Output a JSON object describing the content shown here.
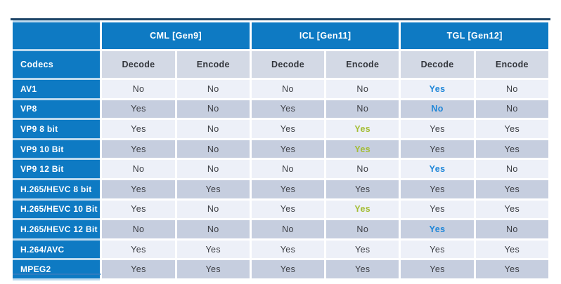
{
  "header": {
    "corner": "",
    "groups": [
      {
        "label": "CML [Gen9]"
      },
      {
        "label": "ICL [Gen11]"
      },
      {
        "label": "TGL [Gen12]"
      }
    ],
    "codec_col": "Codecs",
    "subcols": [
      "Decode",
      "Encode",
      "Decode",
      "Encode",
      "Decode",
      "Encode"
    ]
  },
  "rows": [
    {
      "codec": "AV1",
      "cells": [
        {
          "text": "No",
          "highlight": "none"
        },
        {
          "text": "No",
          "highlight": "none"
        },
        {
          "text": "No",
          "highlight": "none"
        },
        {
          "text": "No",
          "highlight": "none"
        },
        {
          "text": "Yes",
          "highlight": "blue"
        },
        {
          "text": "No",
          "highlight": "none"
        }
      ]
    },
    {
      "codec": "VP8",
      "cells": [
        {
          "text": "Yes",
          "highlight": "none"
        },
        {
          "text": "No",
          "highlight": "none"
        },
        {
          "text": "Yes",
          "highlight": "none"
        },
        {
          "text": "No",
          "highlight": "none"
        },
        {
          "text": "No",
          "highlight": "blue"
        },
        {
          "text": "No",
          "highlight": "none"
        }
      ]
    },
    {
      "codec": "VP9 8 bit",
      "cells": [
        {
          "text": "Yes",
          "highlight": "none"
        },
        {
          "text": "No",
          "highlight": "none"
        },
        {
          "text": "Yes",
          "highlight": "none"
        },
        {
          "text": "Yes",
          "highlight": "green"
        },
        {
          "text": "Yes",
          "highlight": "none"
        },
        {
          "text": "Yes",
          "highlight": "none"
        }
      ]
    },
    {
      "codec": "VP9 10 Bit",
      "cells": [
        {
          "text": "Yes",
          "highlight": "none"
        },
        {
          "text": "No",
          "highlight": "none"
        },
        {
          "text": "Yes",
          "highlight": "none"
        },
        {
          "text": "Yes",
          "highlight": "green"
        },
        {
          "text": "Yes",
          "highlight": "none"
        },
        {
          "text": "Yes",
          "highlight": "none"
        }
      ]
    },
    {
      "codec": "VP9 12 Bit",
      "cells": [
        {
          "text": "No",
          "highlight": "none"
        },
        {
          "text": "No",
          "highlight": "none"
        },
        {
          "text": "No",
          "highlight": "none"
        },
        {
          "text": "No",
          "highlight": "none"
        },
        {
          "text": "Yes",
          "highlight": "blue"
        },
        {
          "text": "No",
          "highlight": "none"
        }
      ]
    },
    {
      "codec": "H.265/HEVC 8 bit",
      "cells": [
        {
          "text": "Yes",
          "highlight": "none"
        },
        {
          "text": "Yes",
          "highlight": "none"
        },
        {
          "text": "Yes",
          "highlight": "none"
        },
        {
          "text": "Yes",
          "highlight": "none"
        },
        {
          "text": "Yes",
          "highlight": "none"
        },
        {
          "text": "Yes",
          "highlight": "none"
        }
      ]
    },
    {
      "codec": "H.265/HEVC 10 Bit",
      "cells": [
        {
          "text": "Yes",
          "highlight": "none"
        },
        {
          "text": "No",
          "highlight": "none"
        },
        {
          "text": "Yes",
          "highlight": "none"
        },
        {
          "text": "Yes",
          "highlight": "green"
        },
        {
          "text": "Yes",
          "highlight": "none"
        },
        {
          "text": "Yes",
          "highlight": "none"
        }
      ]
    },
    {
      "codec": "H.265/HEVC 12 Bit",
      "cells": [
        {
          "text": "No",
          "highlight": "none"
        },
        {
          "text": "No",
          "highlight": "none"
        },
        {
          "text": "No",
          "highlight": "none"
        },
        {
          "text": "No",
          "highlight": "none"
        },
        {
          "text": "Yes",
          "highlight": "blue"
        },
        {
          "text": "No",
          "highlight": "none"
        }
      ]
    },
    {
      "codec": "H.264/AVC",
      "cells": [
        {
          "text": "Yes",
          "highlight": "none"
        },
        {
          "text": "Yes",
          "highlight": "none"
        },
        {
          "text": "Yes",
          "highlight": "none"
        },
        {
          "text": "Yes",
          "highlight": "none"
        },
        {
          "text": "Yes",
          "highlight": "none"
        },
        {
          "text": "Yes",
          "highlight": "none"
        }
      ]
    },
    {
      "codec": "MPEG2",
      "cells": [
        {
          "text": "Yes",
          "highlight": "none"
        },
        {
          "text": "Yes",
          "highlight": "none"
        },
        {
          "text": "Yes",
          "highlight": "none"
        },
        {
          "text": "Yes",
          "highlight": "none"
        },
        {
          "text": "Yes",
          "highlight": "none"
        },
        {
          "text": "Yes",
          "highlight": "none"
        }
      ]
    }
  ],
  "colors": {
    "header_blue": "#0e7ac3",
    "subheader_bg": "#d3d9e5",
    "row_light": "#edf0f8",
    "row_dark": "#c6cedf",
    "text_dark": "#3c3e44",
    "highlight_blue": "#1e86d8",
    "highlight_green": "#a4bd35",
    "seam_light_blue": "#bcd9ee",
    "top_line": "#1e4668",
    "bottom_accent": "#2e7cc0"
  },
  "chart_data": {
    "type": "table",
    "title": "",
    "column_groups": [
      {
        "label": "CML [Gen9]",
        "span": 2
      },
      {
        "label": "ICL [Gen11]",
        "span": 2
      },
      {
        "label": "TGL [Gen12]",
        "span": 2
      }
    ],
    "columns": [
      "Codecs",
      "Decode",
      "Encode",
      "Decode",
      "Encode",
      "Decode",
      "Encode"
    ],
    "rows": [
      [
        "AV1",
        "No",
        "No",
        "No",
        "No",
        "Yes",
        "No"
      ],
      [
        "VP8",
        "Yes",
        "No",
        "Yes",
        "No",
        "No",
        "No"
      ],
      [
        "VP9 8 bit",
        "Yes",
        "No",
        "Yes",
        "Yes",
        "Yes",
        "Yes"
      ],
      [
        "VP9 10 Bit",
        "Yes",
        "No",
        "Yes",
        "Yes",
        "Yes",
        "Yes"
      ],
      [
        "VP9 12 Bit",
        "No",
        "No",
        "No",
        "No",
        "Yes",
        "No"
      ],
      [
        "H.265/HEVC 8 bit",
        "Yes",
        "Yes",
        "Yes",
        "Yes",
        "Yes",
        "Yes"
      ],
      [
        "H.265/HEVC 10 Bit",
        "Yes",
        "No",
        "Yes",
        "Yes",
        "Yes",
        "Yes"
      ],
      [
        "H.265/HEVC 12 Bit",
        "No",
        "No",
        "No",
        "No",
        "Yes",
        "No"
      ],
      [
        "H.264/AVC",
        "Yes",
        "Yes",
        "Yes",
        "Yes",
        "Yes",
        "Yes"
      ],
      [
        "MPEG2",
        "Yes",
        "Yes",
        "Yes",
        "Yes",
        "Yes",
        "Yes"
      ]
    ],
    "highlighted_cells": [
      {
        "row": "AV1",
        "column": "TGL Decode",
        "text": "Yes",
        "color": "blue"
      },
      {
        "row": "VP8",
        "column": "TGL Decode",
        "text": "No",
        "color": "blue"
      },
      {
        "row": "VP9 8 bit",
        "column": "ICL Encode",
        "text": "Yes",
        "color": "green"
      },
      {
        "row": "VP9 10 Bit",
        "column": "ICL Encode",
        "text": "Yes",
        "color": "green"
      },
      {
        "row": "VP9 12 Bit",
        "column": "TGL Decode",
        "text": "Yes",
        "color": "blue"
      },
      {
        "row": "H.265/HEVC 10 Bit",
        "column": "ICL Encode",
        "text": "Yes",
        "color": "green"
      },
      {
        "row": "H.265/HEVC 12 Bit",
        "column": "TGL Decode",
        "text": "Yes",
        "color": "blue"
      }
    ],
    "legend_position": "none",
    "grid": false
  }
}
